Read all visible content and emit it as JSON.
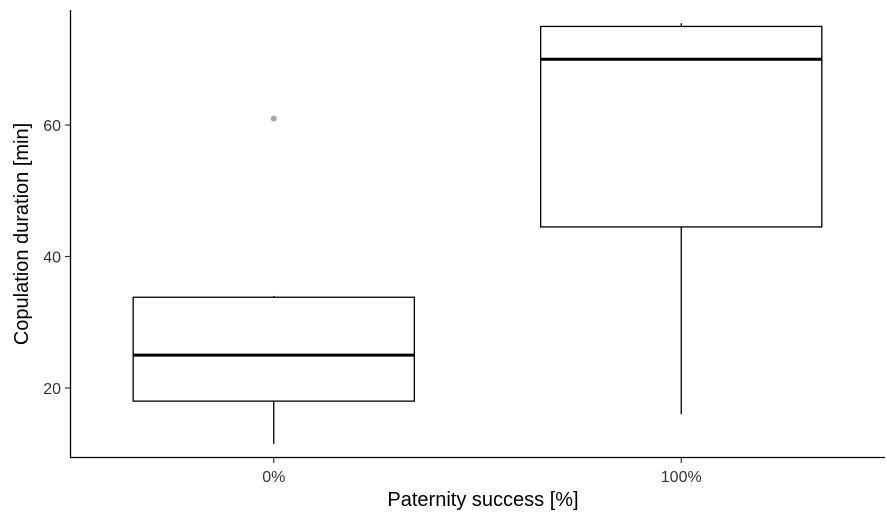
{
  "chart_data": {
    "type": "boxplot",
    "xlabel": "Paternity success [%]",
    "ylabel": "Copulation duration [min]",
    "categories": [
      "0%",
      "100%"
    ],
    "yticks": [
      20,
      40,
      60
    ],
    "ylim": [
      9.5,
      77.5
    ],
    "grid": false,
    "boxes": [
      {
        "category": "0%",
        "whisker_low": 11.5,
        "q1": 18,
        "median": 25,
        "q3": 33.8,
        "whisker_high": 34,
        "outliers": [
          61
        ]
      },
      {
        "category": "100%",
        "whisker_low": 16,
        "q1": 44.5,
        "median": 70,
        "q3": 75,
        "whisker_high": 75.5,
        "outliers": []
      }
    ],
    "colors": {
      "box_fill": "#ffffff",
      "box_stroke": "#000000",
      "outlier": "#a6a6a6"
    }
  }
}
